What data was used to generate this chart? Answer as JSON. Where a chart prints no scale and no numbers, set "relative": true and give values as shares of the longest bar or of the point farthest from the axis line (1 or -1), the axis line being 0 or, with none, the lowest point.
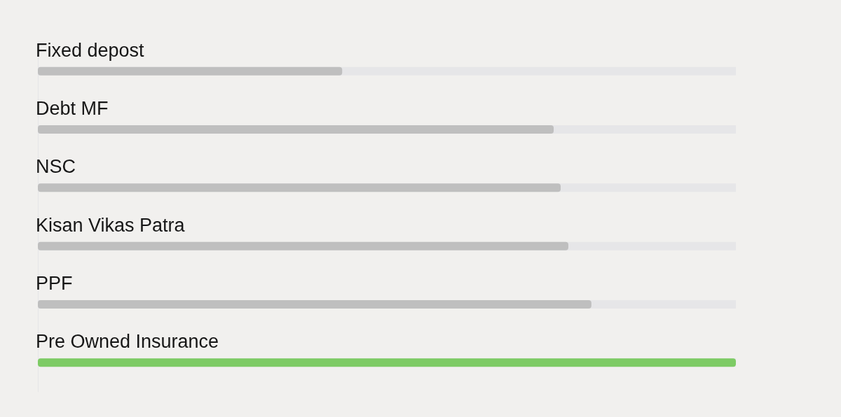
{
  "chart_data": {
    "type": "bar",
    "orientation": "horizontal",
    "relative": true,
    "categories": [
      "Fixed depost",
      "Debt MF",
      "NSC",
      "Kisan Vikas Patra",
      "PPF",
      "Pre Owned Insurance"
    ],
    "values": [
      0.436,
      0.739,
      0.749,
      0.76,
      0.793,
      1
    ],
    "colors": [
      "#bfbfbf",
      "#bfbfbf",
      "#bfbfbf",
      "#bfbfbf",
      "#bfbfbf",
      "#7dcb64"
    ]
  }
}
